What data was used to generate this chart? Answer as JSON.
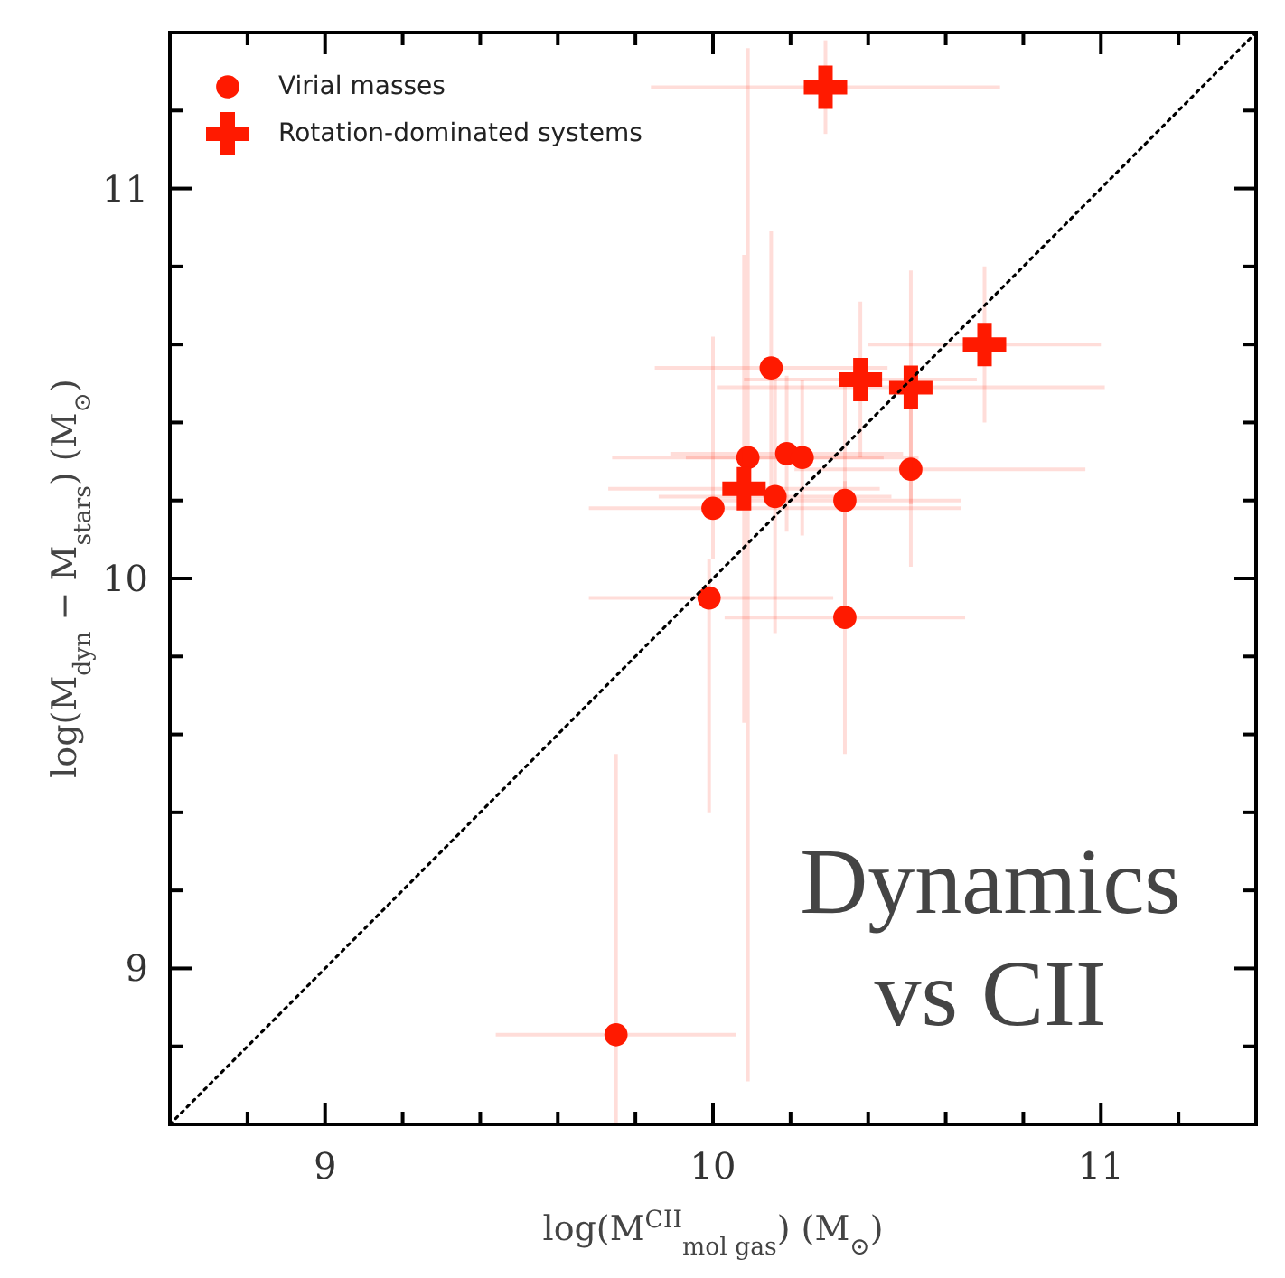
{
  "chart_data": {
    "type": "scatter",
    "xlabel": "log(M$^{CII}$$_{mol gas}$) (M$_{⊙}$)",
    "ylabel": "log(M$_{dyn}$ − M$_{stars}$) (M$_{⊙}$)",
    "xlim": [
      8.6,
      11.4
    ],
    "ylim": [
      8.6,
      11.4
    ],
    "xticks": [
      {
        "value": 8.8,
        "label": null
      },
      9,
      {
        "value": 9.2,
        "label": null
      },
      {
        "value": 9.4,
        "label": null
      },
      {
        "value": 9.6,
        "label": null
      },
      {
        "value": 9.8,
        "label": null
      },
      10,
      {
        "value": 10.2,
        "label": null
      },
      {
        "value": 10.4,
        "label": null
      },
      {
        "value": 10.6,
        "label": null
      },
      {
        "value": 10.8,
        "label": null
      },
      11,
      {
        "value": 11.2,
        "label": null
      }
    ],
    "yticks": [
      {
        "value": 8.8,
        "label": null
      },
      9,
      {
        "value": 9.2,
        "label": null
      },
      {
        "value": 9.4,
        "label": null
      },
      {
        "value": 9.6,
        "label": null
      },
      {
        "value": 9.8,
        "label": null
      },
      10,
      {
        "value": 10.2,
        "label": null
      },
      {
        "value": 10.4,
        "label": null
      },
      {
        "value": 10.6,
        "label": null
      },
      {
        "value": 10.8,
        "label": null
      },
      11,
      {
        "value": 11.2,
        "label": null
      }
    ],
    "legend": "top left",
    "annotations": [
      "Dynamics vs CII"
    ],
    "series": [
      {
        "name": "Virial masses",
        "color": "#ff1a00",
        "marker": "circle",
        "x": [
          10.15,
          10.0,
          10.09,
          10.16,
          10.19,
          10.23,
          10.34,
          10.51,
          9.99,
          10.34,
          9.75
        ],
        "values": [
          10.54,
          10.18,
          10.31,
          10.21,
          10.32,
          10.31,
          10.2,
          10.28,
          9.95,
          9.9,
          8.83
        ],
        "xerrors": [
          0.3,
          [
            9.68,
            10.64
          ],
          0.35,
          0.3,
          0.3,
          0.3,
          [
            9.99,
            10.64
          ],
          [
            10.21,
            10.96
          ],
          [
            9.68,
            10.31
          ],
          0.31,
          0.31
        ],
        "errors": [
          0.35,
          [
            10.05,
            10.62
          ],
          [
            8.71,
            11.36
          ],
          0.35,
          0.2,
          0.2,
          0.3,
          0.25,
          [
            9.4,
            10.05
          ],
          0.35,
          [
            8.6,
            9.55
          ]
        ]
      },
      {
        "name": "Rotation-dominated systems",
        "color": "#ff1a00",
        "marker": "cross",
        "x": [
          10.29,
          10.38,
          10.51,
          10.7,
          10.08
        ],
        "values": [
          11.26,
          10.51,
          10.49,
          10.6,
          10.23
        ],
        "xerrors": [
          0.45,
          0.3,
          0.5,
          0.3,
          0.35
        ],
        "errors": [
          0.12,
          0.2,
          0.3,
          0.2,
          0.6
        ]
      },
      {
        "type": "line",
        "color": "#000000",
        "line_style": "dotted",
        "x": [
          8.6,
          11.4
        ],
        "values": [
          8.6,
          11.4
        ]
      }
    ]
  }
}
